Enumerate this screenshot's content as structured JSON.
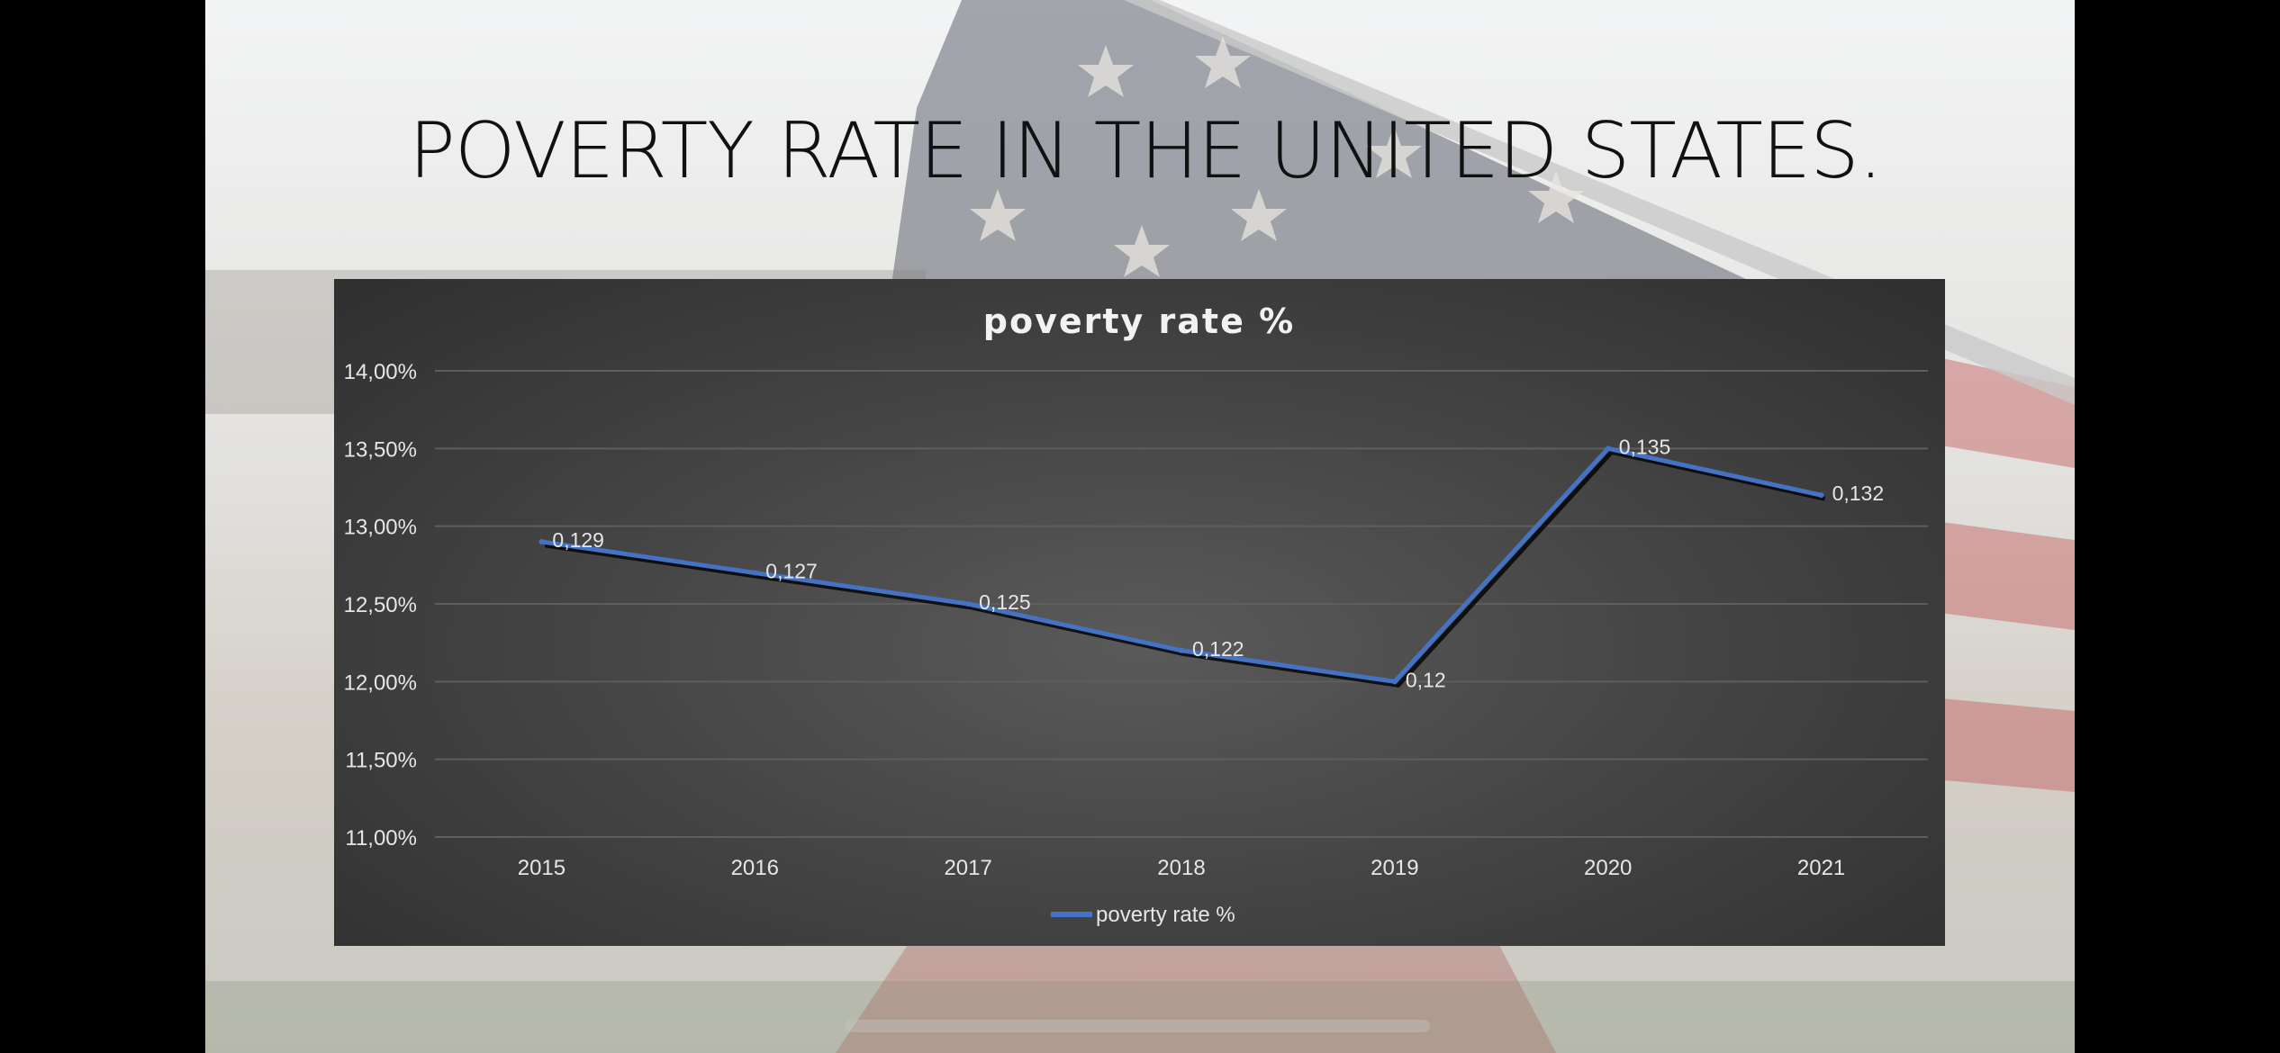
{
  "slide": {
    "title": "POVERTY RATE IN THE UNITED STATES."
  },
  "colors": {
    "line": "#4472c4",
    "panel": "#404040",
    "text": "#e6e6e6",
    "grid": "#5e5e5e"
  },
  "chart_data": {
    "type": "line",
    "title": "poverty rate %",
    "xlabel": "",
    "ylabel": "",
    "categories": [
      "2015",
      "2016",
      "2017",
      "2018",
      "2019",
      "2020",
      "2021"
    ],
    "series": [
      {
        "name": "poverty rate %",
        "values": [
          0.129,
          0.127,
          0.125,
          0.122,
          0.12,
          0.135,
          0.132
        ],
        "data_labels": [
          "0,129",
          "0,127",
          "0,125",
          "0,122",
          "0,12",
          "0,135",
          "0,132"
        ]
      }
    ],
    "ylim": [
      0.11,
      0.14
    ],
    "y_ticks": [
      0.11,
      0.115,
      0.12,
      0.125,
      0.13,
      0.135,
      0.14
    ],
    "y_tick_labels": [
      "11,00%",
      "11,50%",
      "12,00%",
      "12,50%",
      "13,00%",
      "13,50%",
      "14,00%"
    ],
    "grid": true,
    "legend": "bottom"
  }
}
